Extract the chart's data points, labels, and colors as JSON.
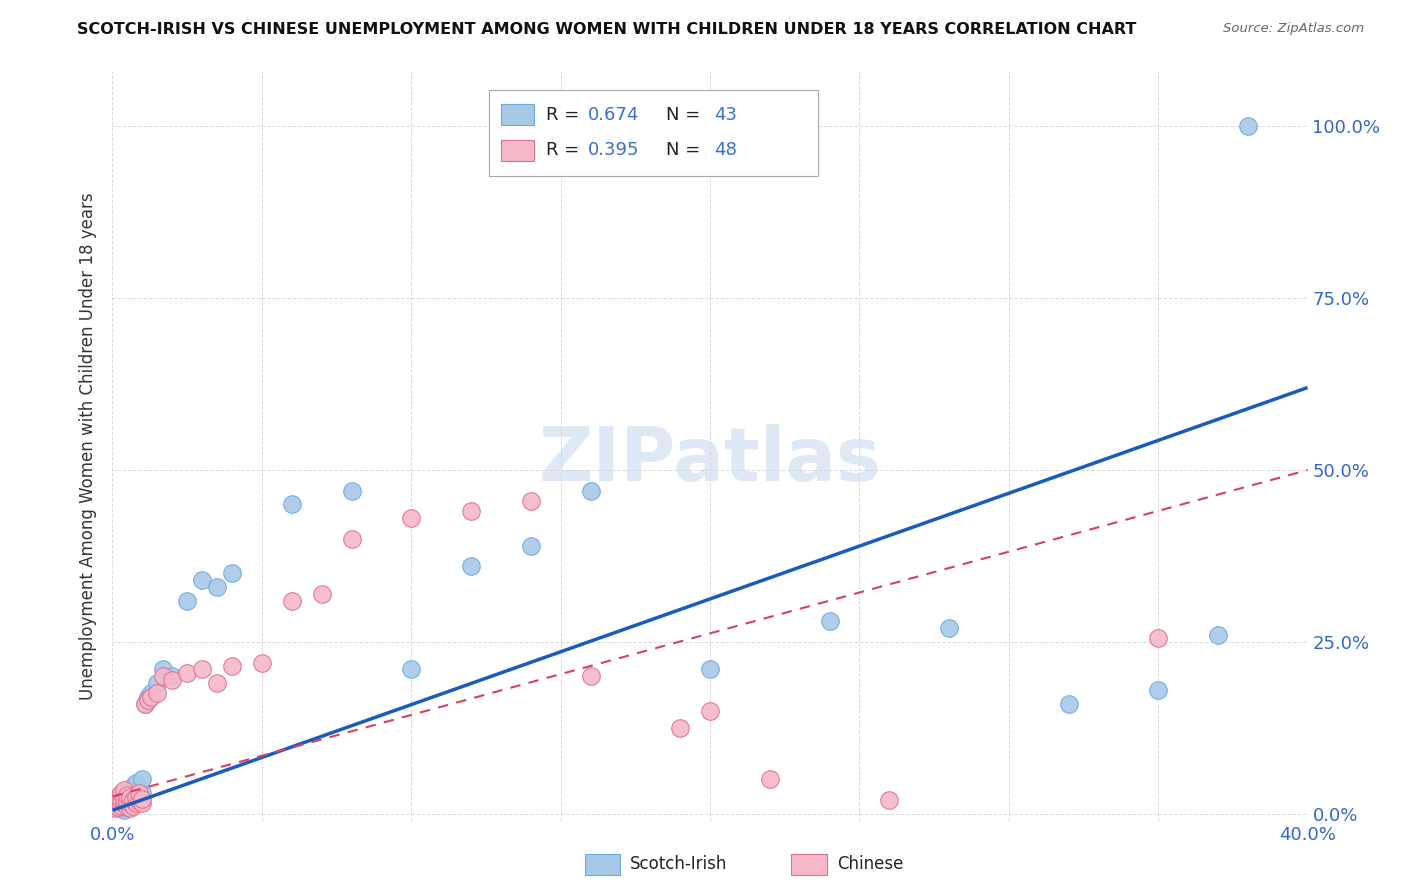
{
  "title": "SCOTCH-IRISH VS CHINESE UNEMPLOYMENT AMONG WOMEN WITH CHILDREN UNDER 18 YEARS CORRELATION CHART",
  "source": "Source: ZipAtlas.com",
  "ylabel": "Unemployment Among Women with Children Under 18 years",
  "xlim": [
    0.0,
    0.4
  ],
  "ylim": [
    -0.01,
    1.08
  ],
  "xtick_positions": [
    0.0,
    0.05,
    0.1,
    0.15,
    0.2,
    0.25,
    0.3,
    0.35,
    0.4
  ],
  "xticklabels": [
    "0.0%",
    "",
    "",
    "",
    "",
    "",
    "",
    "",
    "40.0%"
  ],
  "ytick_positions": [
    0.0,
    0.25,
    0.5,
    0.75,
    1.0
  ],
  "ytick_labels": [
    "0.0%",
    "25.0%",
    "50.0%",
    "75.0%",
    "100.0%"
  ],
  "scotch_irish_color": "#a8c8e8",
  "scotch_irish_edge": "#6aabe0",
  "chinese_color": "#f4b8c8",
  "chinese_edge": "#e07090",
  "line_blue": "#1a5bbf",
  "line_pink": "#d84060",
  "watermark": "ZIPatlas",
  "background_color": "#ffffff",
  "grid_color": "#cccccc",
  "scotch_irish_x": [
    0.001,
    0.002,
    0.002,
    0.003,
    0.003,
    0.003,
    0.004,
    0.004,
    0.005,
    0.005,
    0.005,
    0.006,
    0.006,
    0.007,
    0.007,
    0.008,
    0.008,
    0.009,
    0.01,
    0.01,
    0.011,
    0.012,
    0.013,
    0.015,
    0.017,
    0.02,
    0.025,
    0.03,
    0.035,
    0.04,
    0.06,
    0.08,
    0.1,
    0.12,
    0.14,
    0.16,
    0.2,
    0.24,
    0.28,
    0.32,
    0.35,
    0.37,
    0.38
  ],
  "scotch_irish_y": [
    0.02,
    0.01,
    0.015,
    0.008,
    0.012,
    0.025,
    0.018,
    0.005,
    0.01,
    0.022,
    0.03,
    0.015,
    0.035,
    0.02,
    0.04,
    0.025,
    0.045,
    0.018,
    0.03,
    0.05,
    0.16,
    0.17,
    0.175,
    0.19,
    0.21,
    0.2,
    0.31,
    0.34,
    0.33,
    0.35,
    0.45,
    0.47,
    0.21,
    0.36,
    0.39,
    0.47,
    0.21,
    0.28,
    0.27,
    0.16,
    0.18,
    0.26,
    1.0
  ],
  "chinese_x": [
    0.001,
    0.001,
    0.002,
    0.002,
    0.002,
    0.003,
    0.003,
    0.003,
    0.004,
    0.004,
    0.004,
    0.005,
    0.005,
    0.005,
    0.006,
    0.006,
    0.006,
    0.007,
    0.007,
    0.008,
    0.008,
    0.009,
    0.009,
    0.01,
    0.01,
    0.011,
    0.012,
    0.013,
    0.015,
    0.017,
    0.02,
    0.025,
    0.03,
    0.035,
    0.04,
    0.05,
    0.06,
    0.07,
    0.08,
    0.1,
    0.12,
    0.14,
    0.16,
    0.19,
    0.2,
    0.22,
    0.26,
    0.35
  ],
  "chinese_y": [
    0.008,
    0.015,
    0.01,
    0.018,
    0.025,
    0.012,
    0.02,
    0.03,
    0.015,
    0.022,
    0.035,
    0.01,
    0.018,
    0.028,
    0.008,
    0.015,
    0.025,
    0.012,
    0.02,
    0.015,
    0.025,
    0.018,
    0.03,
    0.015,
    0.022,
    0.16,
    0.165,
    0.17,
    0.175,
    0.2,
    0.195,
    0.205,
    0.21,
    0.19,
    0.215,
    0.22,
    0.31,
    0.32,
    0.4,
    0.43,
    0.44,
    0.455,
    0.2,
    0.125,
    0.15,
    0.05,
    0.02,
    0.255
  ],
  "si_line_x0": 0.0,
  "si_line_y0": 0.005,
  "si_line_x1": 0.4,
  "si_line_y1": 0.62,
  "ch_line_x0": 0.0,
  "ch_line_y0": 0.025,
  "ch_line_x1": 0.4,
  "ch_line_y1": 0.5
}
